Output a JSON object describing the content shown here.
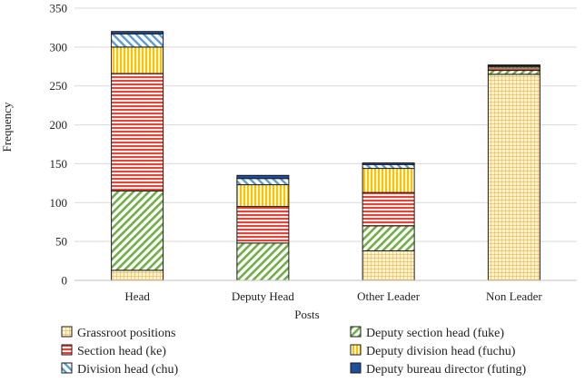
{
  "chart_data": {
    "type": "bar",
    "stacked": true,
    "title": "",
    "xlabel": "Posts",
    "ylabel": "Frequency",
    "ylim": [
      0,
      350
    ],
    "yticks": [
      0,
      50,
      100,
      150,
      200,
      250,
      300,
      350
    ],
    "grid": true,
    "legend_position": "bottom",
    "categories": [
      "Head",
      "Deputy Head",
      "Other Leader",
      "Non Leader"
    ],
    "series": [
      {
        "name": "Grassroot positions",
        "color": "#f2c35a",
        "pattern": "grid",
        "values": [
          13,
          0,
          38,
          265
        ]
      },
      {
        "name": "Deputy section head (fuke)",
        "color": "#70ad47",
        "pattern": "diagonal",
        "values": [
          102,
          48,
          32,
          5
        ]
      },
      {
        "name": "Section head (ke)",
        "color": "#e0473a",
        "pattern": "horizontal",
        "values": [
          151,
          47,
          43,
          3
        ]
      },
      {
        "name": "Deputy division head (fuchu)",
        "color": "#ffc000",
        "pattern": "vertical",
        "values": [
          34,
          28,
          31,
          2
        ]
      },
      {
        "name": "Division head (chu)",
        "color": "#5b9bd5",
        "pattern": "diagonal",
        "values": [
          17,
          8,
          5,
          1
        ]
      },
      {
        "name": "Deputy bureau director (futing)",
        "color": "#1f4e9c",
        "pattern": "solid",
        "values": [
          3,
          4,
          2,
          1
        ]
      }
    ]
  }
}
